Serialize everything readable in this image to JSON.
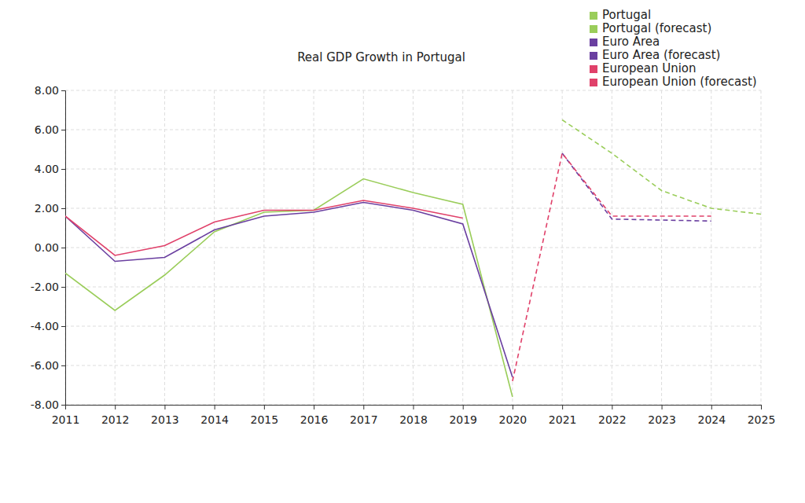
{
  "chart_data": {
    "type": "line",
    "title": "Real GDP Growth in Portugal",
    "x": [
      2011,
      2012,
      2013,
      2014,
      2015,
      2016,
      2017,
      2018,
      2019,
      2020,
      2021,
      2022,
      2023,
      2024,
      2025
    ],
    "xlim": [
      2011,
      2025
    ],
    "xticks": [
      2011,
      2012,
      2013,
      2014,
      2015,
      2016,
      2017,
      2018,
      2019,
      2020,
      2021,
      2022,
      2023,
      2024,
      2025
    ],
    "ylim": [
      -8,
      8
    ],
    "yticks": [
      {
        "value": -8,
        "label": "-8.00"
      },
      {
        "value": -6,
        "label": "-6.00"
      },
      {
        "value": -4,
        "label": "-4.00"
      },
      {
        "value": -2,
        "label": "-2.00"
      },
      {
        "value": 0,
        "label": "0.00"
      },
      {
        "value": 2,
        "label": "2.00"
      },
      {
        "value": 4,
        "label": "4.00"
      },
      {
        "value": 6,
        "label": "6.00"
      },
      {
        "value": 8,
        "label": "8.00"
      }
    ],
    "grid": true,
    "legend": "top-right",
    "series": [
      {
        "name": "Portugal",
        "color": "#9acd5a",
        "line_style": "solid",
        "values": [
          -1.3,
          -3.2,
          -1.4,
          0.8,
          1.8,
          1.9,
          3.5,
          2.8,
          2.2,
          -7.6,
          null,
          null,
          null,
          null,
          null
        ]
      },
      {
        "name": "Portugal (forecast)",
        "color": "#9acd5a",
        "line_style": "dashed",
        "values": [
          null,
          null,
          null,
          null,
          null,
          null,
          null,
          null,
          null,
          null,
          6.5,
          4.8,
          2.9,
          2.0,
          1.7
        ]
      },
      {
        "name": "Euro Area",
        "color": "#6a3fa0",
        "line_style": "solid",
        "values": [
          1.6,
          -0.7,
          -0.5,
          0.9,
          1.6,
          1.8,
          2.3,
          1.9,
          1.2,
          -6.6,
          null,
          null,
          null,
          null,
          null
        ]
      },
      {
        "name": "Euro Area (forecast)",
        "color": "#6a3fa0",
        "line_style": "dashed",
        "values": [
          null,
          null,
          null,
          null,
          null,
          null,
          null,
          null,
          null,
          null,
          4.8,
          1.45,
          1.4,
          1.35,
          null
        ]
      },
      {
        "name": "European Union",
        "color": "#e0416a",
        "line_style": "solid",
        "values": [
          1.6,
          -0.4,
          0.1,
          1.3,
          1.9,
          1.9,
          2.4,
          2.0,
          1.5,
          null,
          null,
          null,
          null,
          null,
          null
        ]
      },
      {
        "name": "European Union (forecast)",
        "color": "#e0416a",
        "line_style": "dashed",
        "values": [
          null,
          null,
          null,
          null,
          null,
          null,
          null,
          null,
          null,
          -6.8,
          4.8,
          1.6,
          1.6,
          1.6,
          null
        ]
      }
    ]
  }
}
